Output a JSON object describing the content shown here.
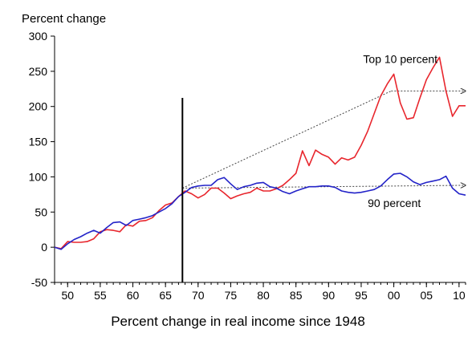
{
  "chart_data": {
    "type": "line",
    "ylabel": "Percent change",
    "xlabel": "Percent change in real income since 1948",
    "ylim": [
      -50,
      300
    ],
    "xlim": [
      1948,
      2011
    ],
    "yticks": [
      -50,
      0,
      50,
      100,
      150,
      200,
      250,
      300
    ],
    "xticks": [
      1950,
      1955,
      1960,
      1965,
      1970,
      1975,
      1980,
      1985,
      1990,
      1995,
      2000,
      2005,
      2010
    ],
    "xtick_labels": [
      "50",
      "55",
      "60",
      "65",
      "70",
      "75",
      "80",
      "85",
      "90",
      "95",
      "00",
      "05",
      "10"
    ],
    "grid": false,
    "annotations": [
      {
        "text": "Top 10 percent",
        "x": 1995.3,
        "y": 262
      },
      {
        "text": "90 percent",
        "x": 1996.0,
        "y": 57
      }
    ],
    "vline_x": 1967.6,
    "x": [
      1948,
      1949,
      1950,
      1951,
      1952,
      1953,
      1954,
      1955,
      1956,
      1957,
      1958,
      1959,
      1960,
      1961,
      1962,
      1963,
      1964,
      1965,
      1966,
      1967,
      1968,
      1969,
      1970,
      1971,
      1972,
      1973,
      1974,
      1975,
      1976,
      1977,
      1978,
      1979,
      1980,
      1981,
      1982,
      1983,
      1984,
      1985,
      1986,
      1987,
      1988,
      1989,
      1990,
      1991,
      1992,
      1993,
      1994,
      1995,
      1996,
      1997,
      1998,
      1999,
      2000,
      2001,
      2002,
      2003,
      2004,
      2005,
      2006,
      2007,
      2008,
      2009,
      2010,
      2011
    ],
    "series": [
      {
        "name": "Top 10 percent",
        "color": "#e8262d",
        "values": [
          0,
          -2,
          8,
          7,
          7,
          8,
          12,
          22,
          25,
          24,
          22,
          32,
          30,
          37,
          38,
          42,
          52,
          60,
          63,
          72,
          80,
          76,
          70,
          75,
          84,
          84,
          77,
          69,
          73,
          76,
          78,
          84,
          80,
          80,
          83,
          88,
          96,
          105,
          137,
          116,
          138,
          132,
          128,
          118,
          127,
          124,
          128,
          145,
          165,
          190,
          215,
          232,
          246,
          205,
          182,
          184,
          212,
          238,
          255,
          270,
          222,
          186,
          201,
          201
        ]
      },
      {
        "name": "90 percent",
        "color": "#2323c8",
        "values": [
          0,
          -3,
          5,
          11,
          15,
          20,
          24,
          20,
          28,
          35,
          36,
          31,
          38,
          40,
          42,
          45,
          50,
          55,
          62,
          72,
          78,
          85,
          87,
          88,
          88,
          96,
          99,
          90,
          82,
          86,
          88,
          91,
          92,
          86,
          84,
          79,
          76,
          80,
          83,
          86,
          86,
          87,
          87,
          85,
          80,
          78,
          77,
          78,
          80,
          82,
          87,
          96,
          104,
          105,
          100,
          93,
          89,
          92,
          94,
          96,
          101,
          84,
          76,
          74
        ]
      }
    ],
    "trend_arrows": [
      {
        "series": "Top 10 percent",
        "from": [
          1967.6,
          84
        ],
        "to": [
          1999.6,
          222
        ],
        "then_flat_to": [
          2011.0,
          222
        ]
      },
      {
        "series": "90 percent",
        "from": [
          1967.6,
          84
        ],
        "to": [
          2011.0,
          88
        ]
      }
    ]
  }
}
